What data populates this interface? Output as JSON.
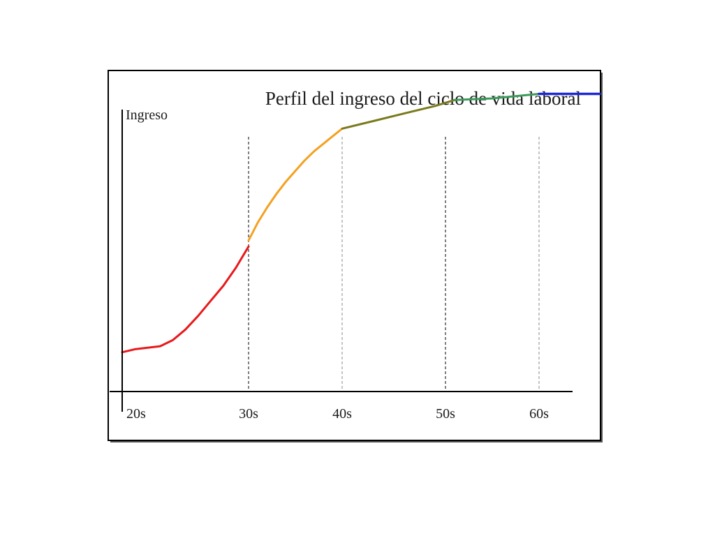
{
  "chart_data": {
    "type": "line",
    "title": "Perfil del ingreso del ciclo de vida laboral",
    "ylabel": "Ingreso",
    "xlabel": "",
    "x_ticks": [
      "20s",
      "30s",
      "40s",
      "50s",
      "60s"
    ],
    "xlim": [
      20,
      70
    ],
    "ylim": [
      0,
      100
    ],
    "grid": "vertical dashed lines at decade boundaries (30s, 40s, 50s, 60s)",
    "legend": "none",
    "series": [
      {
        "color": "#e8191c",
        "points": [
          [
            20,
            13
          ],
          [
            21,
            14
          ],
          [
            22,
            14.5
          ],
          [
            23,
            15
          ],
          [
            24,
            17
          ],
          [
            25,
            20.5
          ],
          [
            26,
            25
          ],
          [
            27,
            30
          ],
          [
            28,
            35
          ],
          [
            29,
            41
          ],
          [
            30,
            48
          ]
        ]
      },
      {
        "color": "#f5a020",
        "points": [
          [
            30,
            50
          ],
          [
            31,
            56
          ],
          [
            32,
            61
          ],
          [
            33,
            65.5
          ],
          [
            34,
            69.5
          ],
          [
            35,
            73
          ],
          [
            36,
            76.5
          ],
          [
            37,
            79.5
          ],
          [
            38,
            82
          ],
          [
            39,
            84.5
          ],
          [
            40,
            87
          ]
        ]
      },
      {
        "color": "#7a7a1c",
        "points": [
          [
            40,
            87
          ],
          [
            43,
            89.5
          ],
          [
            46,
            92
          ],
          [
            49,
            94.5
          ],
          [
            51,
            96.5
          ]
        ]
      },
      {
        "color": "#3a9a5a",
        "points": [
          [
            51,
            96.5
          ],
          [
            55,
            97
          ],
          [
            60,
            98.5
          ]
        ]
      },
      {
        "color": "#1e28d6",
        "points": [
          [
            60,
            98.5
          ],
          [
            66.5,
            98.5
          ]
        ]
      }
    ]
  }
}
